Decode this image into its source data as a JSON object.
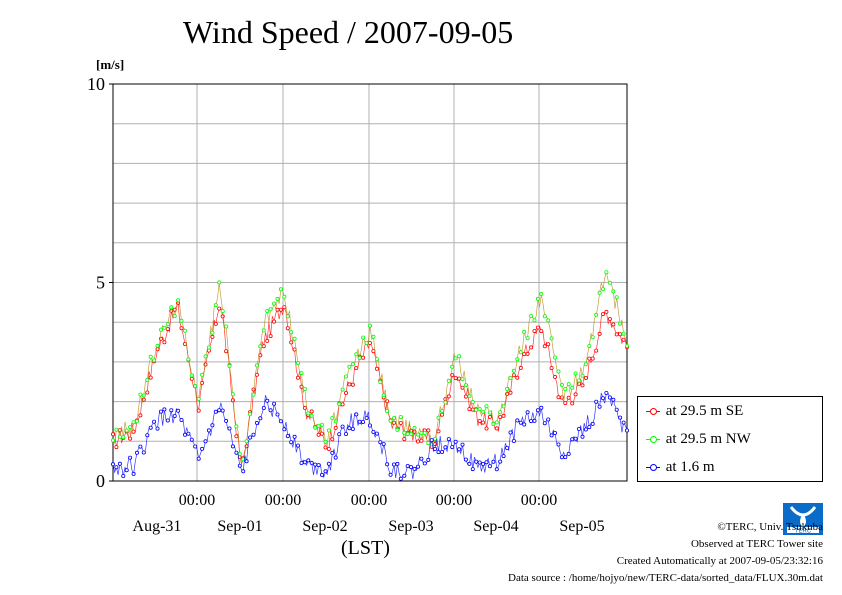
{
  "title": "Wind Speed / 2007-09-05",
  "unit_label": "[m/s]",
  "x_axis_label": "(LST)",
  "legend": [
    {
      "label": "at 29.5 m SE",
      "color": "#ff0000"
    },
    {
      "label": "at 29.5 m NW",
      "color": "#00ff00"
    },
    {
      "label": "at 1.6 m",
      "color": "#0000ff"
    }
  ],
  "footer": {
    "copyright": "©TERC, Univ. Tsukuba",
    "observed": "Observed at TERC Tower site",
    "created": "Created Automatically at 2007-09-05/23:32:16",
    "source": "Data source : /home/hojyo/new/TERC-data/sorted_data/FLUX.30m.dat"
  },
  "logo_text": "TERC",
  "chart_data": {
    "type": "line",
    "title": "Wind Speed / 2007-09-05",
    "ylabel": "[m/s]",
    "xlabel": "(LST)",
    "ylim": [
      0,
      10
    ],
    "yticks": [
      0,
      5,
      10
    ],
    "xlim_days": [
      -1.0,
      5.0
    ],
    "time_ticks": [
      {
        "day": 1,
        "label": "00:00"
      },
      {
        "day": 2,
        "label": "00:00"
      },
      {
        "day": 3,
        "label": "00:00"
      },
      {
        "day": 4,
        "label": "00:00"
      },
      {
        "day": 5,
        "label": "00:00"
      }
    ],
    "date_labels": [
      {
        "day": 0.5,
        "label": "Aug-31"
      },
      {
        "day": 1.5,
        "label": "Sep-01"
      },
      {
        "day": 2.5,
        "label": "Sep-02"
      },
      {
        "day": 3.5,
        "label": "Sep-03"
      },
      {
        "day": 4.5,
        "label": "Sep-04"
      },
      {
        "day": 5.5,
        "label": "Sep-05"
      }
    ],
    "grid": true,
    "legend_position": "right",
    "series": [
      {
        "name": "at 29.5 m SE",
        "color": "#ff0000",
        "x": [
          0.0,
          0.25,
          0.5,
          0.75,
          1.0,
          1.25,
          1.5,
          1.75,
          2.0,
          2.25,
          2.5,
          2.75,
          3.0,
          3.25,
          3.5,
          3.75,
          4.0,
          4.25,
          4.5,
          4.75,
          5.0,
          5.25,
          5.5,
          5.75,
          6.0
        ],
        "y": [
          1.0,
          1.3,
          3.2,
          4.4,
          1.9,
          4.6,
          0.3,
          3.5,
          4.5,
          1.8,
          0.9,
          2.4,
          3.5,
          1.4,
          1.2,
          1.0,
          2.8,
          1.6,
          1.4,
          3.0,
          3.9,
          1.9,
          2.5,
          4.3,
          3.4
        ],
        "x_order": "day index"
      },
      {
        "name": "at 29.5 m NW",
        "color": "#00ff00",
        "x": [
          0.0,
          0.25,
          0.5,
          0.75,
          1.0,
          1.25,
          1.5,
          1.75,
          2.0,
          2.25,
          2.5,
          2.75,
          3.0,
          3.25,
          3.5,
          3.75,
          4.0,
          4.25,
          4.5,
          4.75,
          5.0,
          5.25,
          5.5,
          5.75,
          6.0
        ],
        "y": [
          1.1,
          1.4,
          3.4,
          4.5,
          2.1,
          5.0,
          0.3,
          3.9,
          4.8,
          2.0,
          1.0,
          2.7,
          3.8,
          1.5,
          1.3,
          1.1,
          3.2,
          1.8,
          1.6,
          3.3,
          4.7,
          2.1,
          2.8,
          5.3,
          3.6
        ]
      },
      {
        "name": "at 1.6 m",
        "color": "#0000ff",
        "x": [
          0.0,
          0.25,
          0.5,
          0.75,
          1.0,
          1.25,
          1.5,
          1.75,
          2.0,
          2.25,
          2.5,
          2.75,
          3.0,
          3.25,
          3.5,
          3.75,
          4.0,
          4.25,
          4.5,
          4.75,
          5.0,
          5.25,
          5.5,
          5.75,
          6.0
        ],
        "y": [
          0.3,
          0.4,
          1.5,
          1.7,
          0.5,
          1.9,
          0.2,
          2.0,
          1.5,
          0.4,
          0.3,
          1.5,
          1.6,
          0.3,
          0.2,
          0.9,
          1.0,
          0.3,
          0.5,
          1.5,
          1.7,
          0.7,
          1.3,
          2.2,
          1.2
        ]
      }
    ]
  }
}
